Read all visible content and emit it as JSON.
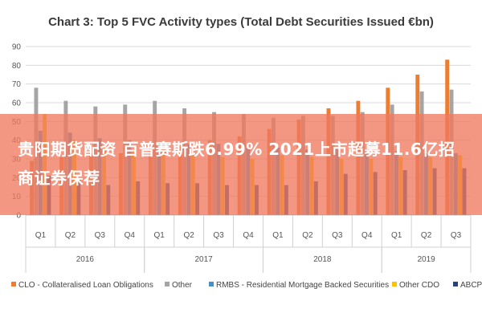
{
  "chart_data": {
    "type": "bar",
    "title": "Chart 3: Top 5 FVC Activity types (Total Debt Securities Issued €bn)",
    "ylim": [
      0,
      90
    ],
    "yticks": [
      0,
      10,
      20,
      30,
      40,
      50,
      60,
      70,
      80,
      90
    ],
    "grid": true,
    "legend_position": "bottom",
    "categories": [
      "Q1",
      "Q2",
      "Q3",
      "Q4",
      "Q1",
      "Q2",
      "Q3",
      "Q4",
      "Q1",
      "Q2",
      "Q3",
      "Q4",
      "Q1",
      "Q2",
      "Q3"
    ],
    "years": [
      {
        "label": "2016",
        "start": 0,
        "end": 3
      },
      {
        "label": "2017",
        "start": 4,
        "end": 7
      },
      {
        "label": "2018",
        "start": 8,
        "end": 11
      },
      {
        "label": "2019",
        "start": 12,
        "end": 14
      }
    ],
    "series": [
      {
        "name": "CLO - Collateralised Loan Obligations",
        "color": "#ed7d31",
        "values": [
          29,
          31,
          33,
          33,
          36,
          37,
          40,
          42,
          46,
          51,
          57,
          61,
          68,
          75,
          83
        ]
      },
      {
        "name": "Other",
        "color": "#a5a5a5",
        "values": [
          68,
          61,
          58,
          59,
          61,
          57,
          55,
          54,
          52,
          53,
          53,
          55,
          59,
          66,
          67
        ]
      },
      {
        "name": "RMBS - Residential Mortgage Backed Securities",
        "color": "#4a90c8",
        "values": [
          45,
          44,
          41,
          40,
          39,
          38,
          38,
          36,
          36,
          35,
          36,
          35,
          34,
          33,
          33
        ]
      },
      {
        "name": "Other CDO",
        "color": "#ffc000",
        "values": [
          54,
          40,
          36,
          35,
          34,
          32,
          31,
          30,
          32,
          31,
          30,
          30,
          31,
          31,
          32
        ]
      },
      {
        "name": "ABCP",
        "color": "#264478",
        "values": [
          21,
          19,
          16,
          18,
          17,
          17,
          16,
          16,
          16,
          18,
          22,
          23,
          24,
          25,
          25
        ]
      }
    ]
  },
  "overlay": {
    "text": "贵阳期货配资 百普赛斯跌6.99% 2021上市超募11.6亿招商证券保荐"
  }
}
